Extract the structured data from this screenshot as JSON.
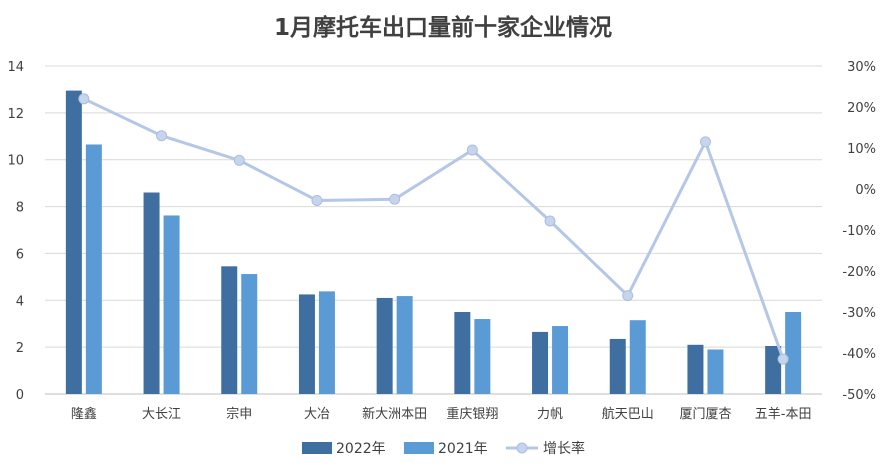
{
  "chart_data": {
    "type": "bar",
    "title": "1月摩托车出口量前十家企业情况",
    "categories": [
      "隆鑫",
      "大长江",
      "宗申",
      "大冶",
      "新大洲本田",
      "重庆银翔",
      "力帆",
      "航天巴山",
      "厦门厦杏",
      "五羊-本田"
    ],
    "series": [
      {
        "name": "2022年",
        "type": "bar",
        "axis": "left",
        "color": "#3f6fa1",
        "values": [
          12.95,
          8.6,
          5.45,
          4.25,
          4.1,
          3.5,
          2.65,
          2.35,
          2.1,
          2.05
        ]
      },
      {
        "name": "2021年",
        "type": "bar",
        "axis": "left",
        "color": "#5b9bd5",
        "values": [
          10.65,
          7.62,
          5.12,
          4.38,
          4.18,
          3.2,
          2.9,
          3.15,
          1.9,
          3.5
        ]
      },
      {
        "name": "增长率",
        "type": "line",
        "axis": "right",
        "color": "#b4c7e7",
        "values": [
          22.0,
          13.0,
          7.0,
          -2.8,
          -2.5,
          9.5,
          -7.8,
          -26.0,
          11.5,
          -41.5
        ]
      }
    ],
    "y_left": {
      "min": 0,
      "max": 14,
      "step": 2,
      "ticks": [
        "0",
        "2",
        "4",
        "6",
        "8",
        "10",
        "12",
        "14"
      ]
    },
    "y_right": {
      "min": -50,
      "max": 30,
      "step": 10,
      "ticks": [
        "-50%",
        "-40%",
        "-30%",
        "-20%",
        "-10%",
        "0%",
        "10%",
        "20%",
        "30%"
      ]
    },
    "grid": true,
    "legend_position": "bottom"
  }
}
